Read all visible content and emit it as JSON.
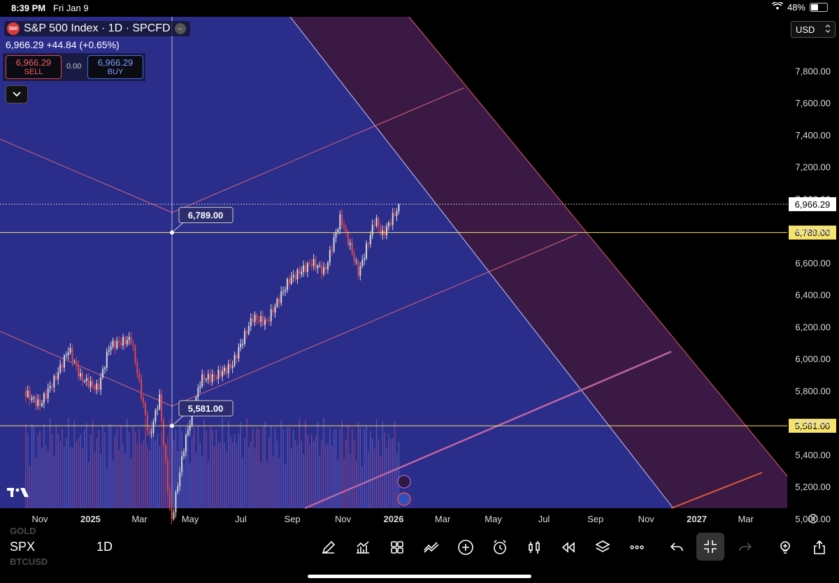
{
  "status_bar": {
    "time": "8:39 PM",
    "date": "Fri Jan 9",
    "battery": "48%",
    "battery_level": 0.48
  },
  "header": {
    "badge": "500",
    "title": "S&P 500 Index · 1D · SPCFD",
    "hide_glyph": "–",
    "price_change": "6,966.29  +44.84 (+0.65%)",
    "sell_price": "6,966.29",
    "sell_label": "SELL",
    "spread": "0.00",
    "buy_price": "6,966.29",
    "buy_label": "BUY"
  },
  "currency": {
    "value": "USD"
  },
  "colors": {
    "up": "#d9d9d9",
    "down": "#e0474c",
    "level": "#f7e26b",
    "channel_blue": "#2b2d8a",
    "channel_purple": "#3a1a44"
  },
  "chart_data": {
    "type": "candlestick",
    "symbol": "SPX",
    "interval": "1D",
    "ylim": [
      4900,
      7950
    ],
    "y_ticks": [
      "7,800.00",
      "7,600.00",
      "7,400.00",
      "7,200.00",
      "7,000.00",
      "6,800.00",
      "6,600.00",
      "6,400.00",
      "6,200.00",
      "6,000.00",
      "5,800.00",
      "5,600.00",
      "5,400.00",
      "5,200.00",
      "5,000.00"
    ],
    "x_ticks": [
      "Nov",
      "2025",
      "Mar",
      "May",
      "Jul",
      "Sep",
      "Nov",
      "2026",
      "Mar",
      "May",
      "Jul",
      "Sep",
      "Nov",
      "2027",
      "Mar"
    ],
    "x_tick_dates": [
      "2024-11",
      "2025-01",
      "2025-03",
      "2025-05",
      "2025-07",
      "2025-09",
      "2025-11",
      "2026-01",
      "2026-03",
      "2026-05",
      "2026-07",
      "2026-09",
      "2026-11",
      "2027-01",
      "2027-03"
    ],
    "last_price": 6966.29,
    "last_price_label": "6,966.29",
    "levels": [
      {
        "value": 6789.0,
        "label": "6,789.00"
      },
      {
        "value": 5581.0,
        "label": "5,581.00"
      }
    ],
    "price_path": [
      {
        "date": "2024-10-15",
        "close": 5800
      },
      {
        "date": "2024-11-01",
        "close": 5730
      },
      {
        "date": "2024-11-20",
        "close": 5900
      },
      {
        "date": "2024-12-06",
        "close": 6080
      },
      {
        "date": "2024-12-20",
        "close": 5900
      },
      {
        "date": "2025-01-10",
        "close": 5830
      },
      {
        "date": "2025-01-24",
        "close": 6100
      },
      {
        "date": "2025-02-19",
        "close": 6140
      },
      {
        "date": "2025-03-13",
        "close": 5520
      },
      {
        "date": "2025-03-25",
        "close": 5780
      },
      {
        "date": "2025-04-08",
        "close": 4980
      },
      {
        "date": "2025-04-24",
        "close": 5480
      },
      {
        "date": "2025-05-14",
        "close": 5890
      },
      {
        "date": "2025-05-30",
        "close": 5900
      },
      {
        "date": "2025-06-20",
        "close": 5970
      },
      {
        "date": "2025-07-15",
        "close": 6270
      },
      {
        "date": "2025-08-01",
        "close": 6240
      },
      {
        "date": "2025-08-28",
        "close": 6500
      },
      {
        "date": "2025-09-25",
        "close": 6610
      },
      {
        "date": "2025-10-10",
        "close": 6550
      },
      {
        "date": "2025-10-29",
        "close": 6890
      },
      {
        "date": "2025-11-20",
        "close": 6540
      },
      {
        "date": "2025-12-10",
        "close": 6880
      },
      {
        "date": "2025-12-18",
        "close": 6770
      },
      {
        "date": "2026-01-09",
        "close": 6966.29
      }
    ]
  },
  "toolbar": {
    "watchlist_above": "GOLD",
    "watchlist_below": "BTCUSD",
    "symbol": "SPX",
    "interval": "1D",
    "icons": [
      "draw-icon",
      "indicators-icon",
      "layout-grid-icon",
      "compare-icon",
      "add-icon",
      "alert-icon",
      "chart-type-icon",
      "replay-icon",
      "layers-icon",
      "more-icon",
      "undo-icon",
      "fullscreen-exit-icon",
      "redo-icon",
      "ideas-icon",
      "share-icon"
    ]
  }
}
